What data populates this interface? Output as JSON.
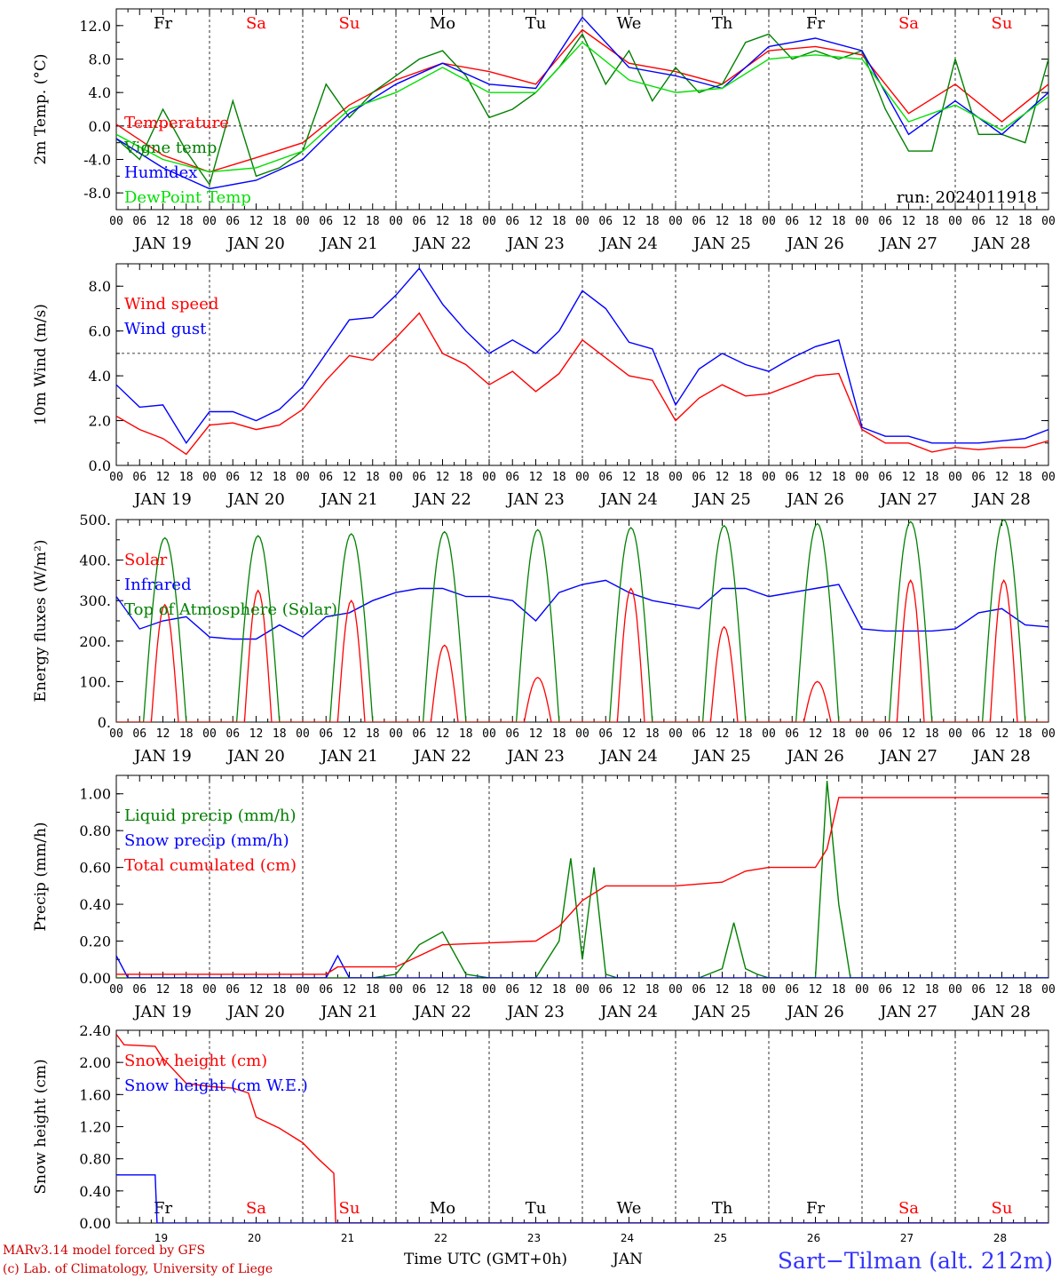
{
  "chart_data": [
    {
      "type": "line",
      "ylabel": "2m Temp. (°C)",
      "yticks": [
        "12.0",
        "8.0",
        "4.0",
        "0.0",
        "-4.0",
        "-8.0"
      ],
      "ylim": [
        -10,
        14
      ],
      "ref_line": 0,
      "run_label": "run: 2024011918",
      "legend": [
        "Temperature",
        "Vigne temp",
        "Humidex",
        "DewPoint Temp"
      ],
      "series": [
        {
          "name": "Temperature",
          "color": "#ff0000",
          "x": [
            0,
            12,
            24,
            36,
            48,
            60,
            72,
            84,
            96,
            108,
            120,
            132,
            144,
            156,
            168,
            180,
            192,
            204,
            216,
            228,
            240
          ],
          "y": [
            0.2,
            -3.5,
            -5.5,
            -3.8,
            -2.0,
            2.5,
            5.5,
            7.5,
            6.5,
            5.0,
            11.5,
            7.5,
            6.5,
            5.0,
            9.0,
            9.5,
            8.5,
            1.5,
            5.0,
            0.5,
            5.0
          ]
        },
        {
          "name": "Vigne temp",
          "color": "#008000",
          "x": [
            0,
            6,
            12,
            18,
            24,
            30,
            36,
            42,
            48,
            54,
            60,
            66,
            72,
            78,
            84,
            90,
            96,
            102,
            108,
            114,
            120,
            126,
            132,
            138,
            144,
            150,
            156,
            162,
            168,
            174,
            180,
            186,
            192,
            198,
            204,
            210,
            216,
            222,
            228,
            234,
            240
          ],
          "y": [
            -1.5,
            -4,
            2,
            -3,
            -7,
            3,
            -6,
            -5,
            -3,
            5,
            1,
            4,
            6,
            8,
            9,
            6,
            1,
            2,
            4,
            7,
            11,
            5,
            9,
            3,
            7,
            4,
            5,
            10,
            11,
            8,
            9,
            8,
            9,
            2,
            -3,
            -3,
            8,
            -1,
            -1,
            -2,
            8
          ]
        },
        {
          "name": "Humidex",
          "color": "#0000ff",
          "x": [
            0,
            12,
            24,
            36,
            48,
            60,
            72,
            84,
            96,
            108,
            120,
            132,
            144,
            156,
            168,
            180,
            192,
            204,
            216,
            228,
            240
          ],
          "y": [
            -1.5,
            -5.0,
            -7.5,
            -6.5,
            -4.0,
            1.5,
            5.0,
            7.5,
            5.0,
            4.5,
            13.0,
            7.0,
            6.0,
            4.5,
            9.5,
            10.5,
            9.0,
            -1.0,
            3.0,
            -1.0,
            4.0
          ]
        },
        {
          "name": "DewPoint Temp",
          "color": "#00e000",
          "x": [
            0,
            12,
            24,
            36,
            48,
            60,
            72,
            84,
            96,
            108,
            120,
            132,
            144,
            156,
            168,
            180,
            192,
            204,
            216,
            228,
            240
          ],
          "y": [
            -1.0,
            -4.0,
            -5.5,
            -5.0,
            -3.0,
            2.0,
            4.0,
            7.0,
            4.0,
            4.0,
            10.0,
            5.5,
            4.0,
            4.5,
            8.0,
            8.5,
            8.0,
            0.5,
            2.5,
            -0.5,
            3.5
          ]
        }
      ]
    },
    {
      "type": "line",
      "ylabel": "10m Wind (m/s)",
      "yticks": [
        "8.0",
        "6.0",
        "4.0",
        "2.0",
        "0.0"
      ],
      "ylim": [
        0,
        9
      ],
      "ref_line": 5,
      "legend": [
        "Wind speed",
        "Wind gust"
      ],
      "series": [
        {
          "name": "Wind speed",
          "color": "#ff0000",
          "x": [
            0,
            6,
            12,
            18,
            24,
            30,
            36,
            42,
            48,
            54,
            60,
            66,
            72,
            78,
            84,
            90,
            96,
            102,
            108,
            114,
            120,
            126,
            132,
            138,
            144,
            150,
            156,
            162,
            168,
            174,
            180,
            186,
            192,
            198,
            204,
            210,
            216,
            222,
            228,
            234,
            240
          ],
          "y": [
            2.2,
            1.6,
            1.2,
            0.5,
            1.8,
            1.9,
            1.6,
            1.8,
            2.5,
            3.8,
            4.9,
            4.7,
            5.7,
            6.8,
            5.0,
            4.5,
            3.6,
            4.2,
            3.3,
            4.1,
            5.6,
            4.8,
            4.0,
            3.8,
            2.0,
            3.0,
            3.6,
            3.1,
            3.2,
            3.6,
            4.0,
            4.1,
            1.6,
            1.0,
            1.0,
            0.6,
            0.8,
            0.7,
            0.8,
            0.8,
            1.1
          ]
        },
        {
          "name": "Wind gust",
          "color": "#0000ff",
          "x": [
            0,
            6,
            12,
            18,
            24,
            30,
            36,
            42,
            48,
            54,
            60,
            66,
            72,
            78,
            84,
            90,
            96,
            102,
            108,
            114,
            120,
            126,
            132,
            138,
            144,
            150,
            156,
            162,
            168,
            174,
            180,
            186,
            192,
            198,
            204,
            210,
            216,
            222,
            228,
            234,
            240
          ],
          "y": [
            3.6,
            2.6,
            2.7,
            1.0,
            2.4,
            2.4,
            2.0,
            2.5,
            3.5,
            5.0,
            6.5,
            6.6,
            7.6,
            8.8,
            7.2,
            6.0,
            5.0,
            5.6,
            5.0,
            6.0,
            7.8,
            7.0,
            5.5,
            5.2,
            2.7,
            4.3,
            5.0,
            4.5,
            4.2,
            4.8,
            5.3,
            5.6,
            1.7,
            1.3,
            1.3,
            1.0,
            1.0,
            1.0,
            1.1,
            1.2,
            1.6
          ]
        }
      ]
    },
    {
      "type": "line",
      "ylabel": "Energy fluxes (W/m²)",
      "yticks": [
        "500.",
        "400.",
        "300.",
        "200.",
        "100.",
        "0."
      ],
      "ylim": [
        0,
        500
      ],
      "legend": [
        "Solar",
        "Infrared",
        "Top of Atmosphere (Solar)"
      ],
      "solar_peaks": [
        290,
        325,
        300,
        190,
        110,
        330,
        235,
        100,
        350,
        350
      ],
      "toa_peaks": [
        455,
        460,
        465,
        470,
        475,
        480,
        485,
        490,
        495,
        500
      ],
      "series": [
        {
          "name": "Infrared",
          "color": "#0000ff",
          "x": [
            0,
            6,
            12,
            18,
            24,
            30,
            36,
            42,
            48,
            54,
            60,
            66,
            72,
            78,
            84,
            90,
            96,
            102,
            108,
            114,
            120,
            126,
            132,
            138,
            144,
            150,
            156,
            162,
            168,
            174,
            180,
            186,
            192,
            198,
            204,
            210,
            216,
            222,
            228,
            234,
            240
          ],
          "y": [
            310,
            230,
            250,
            260,
            210,
            205,
            205,
            240,
            210,
            260,
            270,
            300,
            320,
            330,
            330,
            310,
            310,
            300,
            250,
            320,
            340,
            350,
            320,
            300,
            290,
            280,
            330,
            330,
            310,
            320,
            330,
            340,
            230,
            225,
            225,
            225,
            230,
            270,
            280,
            240,
            235
          ]
        }
      ]
    },
    {
      "type": "line",
      "ylabel": "Precip (mm/h)",
      "yticks": [
        "1.00",
        "0.80",
        "0.60",
        "0.40",
        "0.20",
        "0.00"
      ],
      "ylim": [
        0,
        1.1
      ],
      "legend": [
        "Liquid precip (mm/h)",
        "Snow precip (mm/h)",
        "Total cumulated (cm)"
      ],
      "series": [
        {
          "name": "Liquid precip (mm/h)",
          "color": "#008000",
          "x": [
            0,
            48,
            54,
            60,
            66,
            72,
            78,
            84,
            90,
            96,
            102,
            108,
            114,
            117,
            120,
            123,
            126,
            129,
            132,
            150,
            156,
            159,
            162,
            165,
            168,
            180,
            183,
            186,
            189,
            192,
            240
          ],
          "y": [
            0,
            0,
            0,
            0,
            0,
            0.02,
            0.18,
            0.25,
            0.02,
            0,
            0,
            0,
            0.2,
            0.65,
            0.1,
            0.6,
            0.02,
            0,
            0,
            0,
            0.05,
            0.3,
            0.05,
            0.02,
            0,
            0,
            1.07,
            0.4,
            0,
            0,
            0
          ]
        },
        {
          "name": "Snow precip (mm/h)",
          "color": "#0000ff",
          "x": [
            0,
            3,
            6,
            54,
            57,
            60,
            240
          ],
          "y": [
            0.12,
            0,
            0,
            0,
            0.12,
            0,
            0
          ]
        },
        {
          "name": "Total cumulated (cm)",
          "color": "#ff0000",
          "x": [
            0,
            54,
            57,
            72,
            84,
            96,
            108,
            114,
            120,
            126,
            132,
            144,
            156,
            162,
            168,
            180,
            183,
            186,
            192,
            240
          ],
          "y": [
            0.02,
            0.02,
            0.06,
            0.06,
            0.18,
            0.19,
            0.2,
            0.28,
            0.42,
            0.5,
            0.5,
            0.5,
            0.52,
            0.58,
            0.6,
            0.6,
            0.7,
            0.98,
            0.98,
            0.98
          ]
        }
      ]
    },
    {
      "type": "line",
      "ylabel": "Snow height (cm)",
      "yticks": [
        "2.40",
        "2.00",
        "1.60",
        "1.20",
        "0.80",
        "0.40",
        "0.00"
      ],
      "ylim": [
        0,
        2.4
      ],
      "legend": [
        "Snow height (cm)",
        "Snow height (cm W.E.)"
      ],
      "series": [
        {
          "name": "Snow height (cm)",
          "color": "#ff0000",
          "x": [
            0,
            2,
            10,
            12,
            18,
            24,
            30,
            34,
            36,
            42,
            48,
            52,
            56,
            56.5,
            240
          ],
          "y": [
            2.35,
            2.22,
            2.2,
            2.05,
            1.74,
            1.7,
            1.68,
            1.62,
            1.32,
            1.18,
            1.0,
            0.8,
            0.62,
            0,
            0
          ]
        },
        {
          "name": "Snow height (cm W.E.)",
          "color": "#0000ff",
          "x": [
            0,
            10,
            10.5,
            240
          ],
          "y": [
            0.6,
            0.6,
            0,
            0
          ]
        }
      ]
    }
  ],
  "x_axis": {
    "hour_labels": [
      "00",
      "06",
      "12",
      "18"
    ],
    "end_label": "00",
    "day_labels": [
      "JAN 19",
      "JAN 20",
      "JAN 21",
      "JAN 22",
      "JAN 23",
      "JAN 24",
      "JAN 25",
      "JAN 26",
      "JAN 27",
      "JAN 28"
    ],
    "weekdays": [
      "Fr",
      "Sa",
      "Su",
      "Mo",
      "Tu",
      "We",
      "Th",
      "Fr",
      "Sa",
      "Su"
    ],
    "weekday_colors": [
      "#000000",
      "#ff0000",
      "#ff0000",
      "#000000",
      "#000000",
      "#000000",
      "#000000",
      "#000000",
      "#ff0000",
      "#ff0000"
    ],
    "day_numbers": [
      "19",
      "20",
      "21",
      "22",
      "23",
      "24",
      "25",
      "26",
      "27",
      "28"
    ],
    "time_label": "Time UTC (GMT+0h)",
    "month_label": "JAN"
  },
  "footer": {
    "model_line": "MARv3.14 model forced by GFS",
    "credit_line": "(c) Lab. of Climatology, University of Liege",
    "station": "Sart−Tilman (alt. 212m)"
  },
  "colors": {
    "red": "#ff0000",
    "green": "#008000",
    "blue": "#0000ff",
    "lightgreen": "#00e000",
    "credit": "#cc0000",
    "station": "#3333ff"
  }
}
